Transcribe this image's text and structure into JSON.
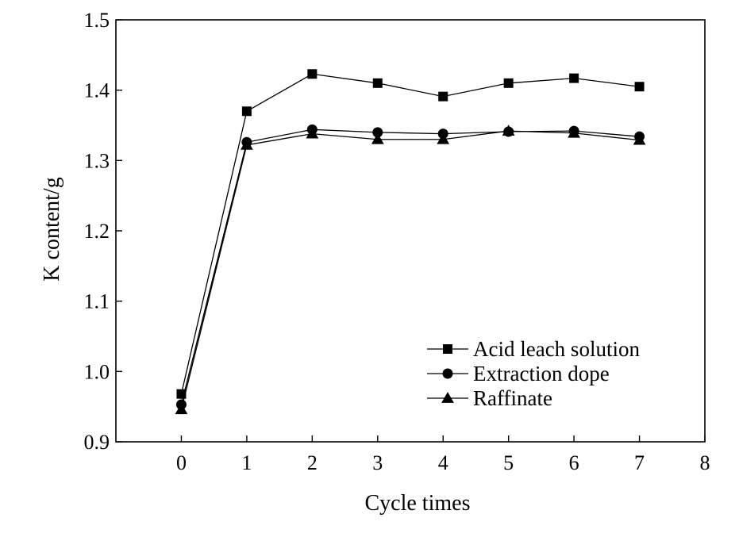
{
  "chart_data": {
    "type": "line",
    "xlabel": "Cycle times",
    "ylabel": "K content/g",
    "xlim": [
      -1,
      8
    ],
    "ylim": [
      0.9,
      1.5
    ],
    "xticks": [
      0,
      1,
      2,
      3,
      4,
      5,
      6,
      7,
      8
    ],
    "yticks": [
      0.9,
      1.0,
      1.1,
      1.2,
      1.3,
      1.4,
      1.5
    ],
    "grid": false,
    "legend_position": "bottom-right",
    "x": [
      0,
      1,
      2,
      3,
      4,
      5,
      6,
      7
    ],
    "series": [
      {
        "name": "Acid leach solution",
        "marker": "square",
        "values": [
          0.968,
          1.37,
          1.423,
          1.41,
          1.391,
          1.41,
          1.417,
          1.405
        ]
      },
      {
        "name": "Extraction dope",
        "marker": "circle",
        "values": [
          0.953,
          1.326,
          1.344,
          1.34,
          1.338,
          1.341,
          1.342,
          1.334
        ]
      },
      {
        "name": "Raffinate",
        "marker": "triangle",
        "values": [
          0.946,
          1.322,
          1.338,
          1.33,
          1.33,
          1.342,
          1.339,
          1.329
        ]
      }
    ]
  }
}
